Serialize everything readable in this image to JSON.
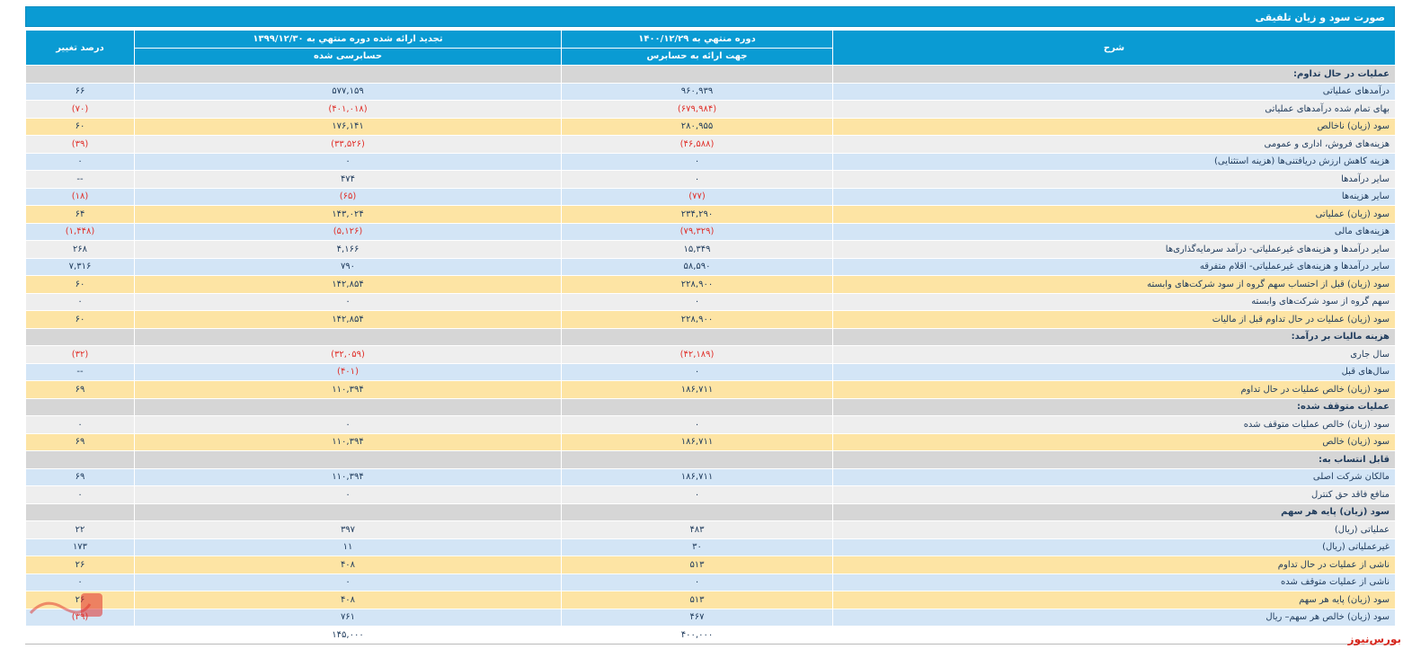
{
  "title": "صورت سود و زیان تلفیقی",
  "headers": {
    "desc": "شرح",
    "current": "دوره منتهي به ۱۴۰۰/۱۲/۲۹",
    "current_sub": "جهت ارائه به حسابرس",
    "previous": "تجدید ارائه شده دوره منتهي به ۱۳۹۹/۱۲/۳۰",
    "previous_sub": "حسابرسی شده",
    "pct": "درصد تغییر"
  },
  "rows": [
    {
      "type": "section",
      "desc": "عملیات در حال تداوم:",
      "cur": "",
      "prev": "",
      "pct": ""
    },
    {
      "type": "blue",
      "desc": "درآمدهای عملیاتی",
      "cur": "۹۶۰,۹۳۹",
      "prev": "۵۷۷,۱۵۹",
      "pct": "۶۶"
    },
    {
      "type": "grey",
      "desc": "بهای تمام شده درآمدهای عملیاتی",
      "cur": "(۶۷۹,۹۸۴)",
      "prev": "(۴۰۱,۰۱۸)",
      "pct": "(۷۰)"
    },
    {
      "type": "yellow",
      "desc": "سود (زیان) ناخالص",
      "cur": "۲۸۰,۹۵۵",
      "prev": "۱۷۶,۱۴۱",
      "pct": "۶۰"
    },
    {
      "type": "grey",
      "desc": "هزینه‌های فروش، اداری و عمومی",
      "cur": "(۴۶,۵۸۸)",
      "prev": "(۳۳,۵۲۶)",
      "pct": "(۳۹)"
    },
    {
      "type": "blue",
      "desc": "هزینه کاهش ارزش دریافتنی‌ها (هزینه استثنایی)",
      "cur": "۰",
      "prev": "۰",
      "pct": "۰"
    },
    {
      "type": "grey",
      "desc": "سایر درآمدها",
      "cur": "۰",
      "prev": "۴۷۴",
      "pct": "--"
    },
    {
      "type": "blue",
      "desc": "سایر هزینه‌ها",
      "cur": "(۷۷)",
      "prev": "(۶۵)",
      "pct": "(۱۸)"
    },
    {
      "type": "yellow",
      "desc": "سود (زیان) عملیاتی",
      "cur": "۲۳۴,۲۹۰",
      "prev": "۱۴۳,۰۲۴",
      "pct": "۶۴"
    },
    {
      "type": "blue",
      "desc": "هزینه‌های مالی",
      "cur": "(۷۹,۳۲۹)",
      "prev": "(۵,۱۲۶)",
      "pct": "(۱,۴۴۸)"
    },
    {
      "type": "grey",
      "desc": "سایر درآمدها و هزینه‌های غیرعملیاتی- درآمد سرمایه‌گذاری‌ها",
      "cur": "۱۵,۳۴۹",
      "prev": "۴,۱۶۶",
      "pct": "۲۶۸"
    },
    {
      "type": "blue",
      "desc": "سایر درآمدها و هزینه‌های غیرعملیاتی- اقلام متفرقه",
      "cur": "۵۸,۵۹۰",
      "prev": "۷۹۰",
      "pct": "۷,۳۱۶"
    },
    {
      "type": "yellow",
      "desc": "سود (زیان) قبل از احتساب سهم گروه از سود شرکت‌های وابسته",
      "cur": "۲۲۸,۹۰۰",
      "prev": "۱۴۲,۸۵۴",
      "pct": "۶۰"
    },
    {
      "type": "grey",
      "desc": "سهم گروه از سود شرکت‌های وابسته",
      "cur": "۰",
      "prev": "۰",
      "pct": "۰"
    },
    {
      "type": "yellow",
      "desc": "سود (زیان) عملیات در حال تداوم قبل از مالیات",
      "cur": "۲۲۸,۹۰۰",
      "prev": "۱۴۲,۸۵۴",
      "pct": "۶۰"
    },
    {
      "type": "section",
      "desc": "هزینه مالیات بر درآمد:",
      "cur": "",
      "prev": "",
      "pct": ""
    },
    {
      "type": "grey",
      "desc": "سال جاری",
      "cur": "(۴۲,۱۸۹)",
      "prev": "(۳۲,۰۵۹)",
      "pct": "(۳۲)"
    },
    {
      "type": "blue",
      "desc": "سال‌های قبل",
      "cur": "۰",
      "prev": "(۴۰۱)",
      "pct": "--"
    },
    {
      "type": "yellow",
      "desc": "سود (زیان) خالص عملیات در حال تداوم",
      "cur": "۱۸۶,۷۱۱",
      "prev": "۱۱۰,۳۹۴",
      "pct": "۶۹"
    },
    {
      "type": "section",
      "desc": "عملیات متوقف شده:",
      "cur": "",
      "prev": "",
      "pct": ""
    },
    {
      "type": "grey",
      "desc": "سود (زیان) خالص عملیات متوقف شده",
      "cur": "۰",
      "prev": "۰",
      "pct": "۰"
    },
    {
      "type": "yellow",
      "desc": "سود (زیان) خالص",
      "cur": "۱۸۶,۷۱۱",
      "prev": "۱۱۰,۳۹۴",
      "pct": "۶۹"
    },
    {
      "type": "section",
      "desc": "قابل انتساب به:",
      "cur": "",
      "prev": "",
      "pct": ""
    },
    {
      "type": "blue",
      "desc": "مالکان شرکت اصلی",
      "cur": "۱۸۶,۷۱۱",
      "prev": "۱۱۰,۳۹۴",
      "pct": "۶۹"
    },
    {
      "type": "grey",
      "desc": "منافع فاقد حق کنترل",
      "cur": "۰",
      "prev": "۰",
      "pct": "۰"
    },
    {
      "type": "section",
      "desc": "سود (زیان) پایه هر سهم",
      "cur": "",
      "prev": "",
      "pct": ""
    },
    {
      "type": "grey",
      "desc": "عملیاتی (ریال)",
      "cur": "۴۸۳",
      "prev": "۳۹۷",
      "pct": "۲۲"
    },
    {
      "type": "blue",
      "desc": "غیرعملیاتی (ریال)",
      "cur": "۳۰",
      "prev": "۱۱",
      "pct": "۱۷۳"
    },
    {
      "type": "yellow",
      "desc": "ناشی از عملیات در حال تداوم",
      "cur": "۵۱۳",
      "prev": "۴۰۸",
      "pct": "۲۶"
    },
    {
      "type": "blue",
      "desc": "ناشی از عملیات متوقف شده",
      "cur": "۰",
      "prev": "۰",
      "pct": "۰"
    },
    {
      "type": "yellow",
      "desc": "سود (زیان) پایه هر سهم",
      "cur": "۵۱۳",
      "prev": "۴۰۸",
      "pct": "۲۶"
    },
    {
      "type": "blue",
      "desc": "سود (زیان) خالص هر سهم– ریال",
      "cur": "۴۶۷",
      "prev": "۷۶۱",
      "pct": "(۳۹)"
    },
    {
      "type": "plain",
      "desc": "",
      "cur": "۴۰۰,۰۰۰",
      "prev": "۱۴۵,۰۰۰",
      "pct": ""
    }
  ],
  "brand": "بورس‌نیوز",
  "colors": {
    "header": "#0a9bd3",
    "blue": "#d3e5f6",
    "grey": "#eeeeee",
    "yellow": "#fde4a4",
    "section": "#d6d6d6",
    "negative": "#e0302a"
  }
}
